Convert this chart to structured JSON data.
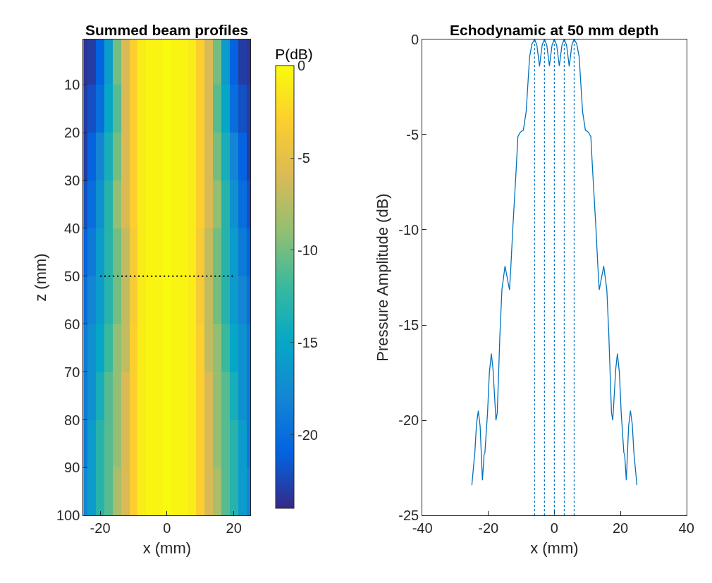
{
  "chart_data": [
    {
      "type": "heatmap",
      "title": "Summed beam profiles",
      "xlabel": "x (mm)",
      "ylabel": "z (mm)",
      "clabel": "P(dB)",
      "x": [
        -25,
        -22.5,
        -20,
        -17.5,
        -15,
        -12.5,
        -10,
        -7.5,
        -5,
        -2.5,
        0,
        2.5,
        5,
        7.5,
        10,
        12.5,
        15,
        17.5,
        20,
        22.5,
        25
      ],
      "y": [
        5,
        15,
        25,
        35,
        45,
        55,
        65,
        75,
        85,
        95
      ],
      "cells": [
        [
          -23.5,
          -23,
          -21,
          -16,
          -10,
          -6,
          -3,
          -1,
          -0.5,
          -0.5,
          0,
          -0.5,
          -0.5,
          -1,
          -3,
          -6,
          -10,
          -16,
          -21,
          -23,
          -23.5
        ],
        [
          -23,
          -22,
          -20,
          -15,
          -11,
          -6,
          -3,
          -1,
          -0.5,
          -0.5,
          0,
          -0.5,
          -0.5,
          -1,
          -3,
          -6,
          -11,
          -15,
          -20,
          -22,
          -23
        ],
        [
          -23,
          -21,
          -18,
          -14,
          -10,
          -6,
          -3,
          -1,
          -0.5,
          -0.5,
          0,
          -0.5,
          -0.5,
          -1,
          -3,
          -6,
          -10,
          -14,
          -18,
          -21,
          -23
        ],
        [
          -22,
          -20,
          -17,
          -13,
          -9,
          -6,
          -3,
          -1,
          -0.5,
          -0.5,
          0,
          -0.5,
          -0.5,
          -1,
          -3,
          -6,
          -9,
          -13,
          -17,
          -20,
          -22
        ],
        [
          -21,
          -19,
          -16,
          -13,
          -10,
          -7,
          -3.5,
          -1,
          -0.5,
          -0.5,
          0,
          -0.5,
          -0.5,
          -1,
          -3.5,
          -7,
          -10,
          -13,
          -16,
          -19,
          -21
        ],
        [
          -20,
          -18,
          -16,
          -13,
          -10,
          -7,
          -3.5,
          -1,
          -0.5,
          -0.5,
          0,
          -0.5,
          -0.5,
          -1,
          -3.5,
          -7,
          -10,
          -13,
          -16,
          -18,
          -20
        ],
        [
          -19,
          -17,
          -15,
          -12,
          -9,
          -7,
          -3,
          -1,
          -0.5,
          -0.5,
          0,
          -0.5,
          -0.5,
          -1,
          -3,
          -7,
          -9,
          -12,
          -15,
          -17,
          -19
        ],
        [
          -19,
          -17,
          -14,
          -11,
          -9,
          -6,
          -3,
          -1,
          -0.5,
          -0.5,
          0,
          -0.5,
          -0.5,
          -1,
          -3,
          -6,
          -9,
          -11,
          -14,
          -17,
          -19
        ],
        [
          -19,
          -16,
          -13,
          -11,
          -9,
          -6,
          -3,
          -1,
          -0.5,
          -0.5,
          0,
          -0.5,
          -0.5,
          -1,
          -3,
          -6,
          -9,
          -11,
          -13,
          -16,
          -19
        ],
        [
          -18,
          -16,
          -13,
          -11,
          -8,
          -6,
          -3,
          -1,
          -0.5,
          -0.5,
          0,
          -0.5,
          -0.5,
          -1,
          -3,
          -6,
          -8,
          -11,
          -13,
          -16,
          -18
        ]
      ],
      "clim": [
        -24,
        0
      ],
      "cticks": [
        -20,
        -15,
        -10,
        -5,
        0
      ],
      "xlim": [
        -25,
        25
      ],
      "xticks": [
        -20,
        0,
        20
      ],
      "ylim": [
        100,
        0.5
      ],
      "yticks": [
        10,
        20,
        30,
        40,
        50,
        60,
        70,
        80,
        90,
        100
      ],
      "series": [
        {
          "type": "line",
          "color": "#000000",
          "line_style": "dotted",
          "x": [
            -20,
            20
          ],
          "values": [
            50,
            50
          ]
        }
      ]
    },
    {
      "type": "line",
      "title": "Echodynamic at 50 mm depth",
      "xlabel": "x (mm)",
      "ylabel": "Pressure Amplitude (dB)",
      "xlim": [
        -40,
        40
      ],
      "xticks": [
        -40,
        -20,
        0,
        20,
        40
      ],
      "ylim": [
        -25,
        0
      ],
      "yticks": [
        -25,
        -20,
        -15,
        -10,
        -5,
        0
      ],
      "series": [
        {
          "color": "#0072bd",
          "x": [
            -25,
            -24.8,
            -24.1,
            -23.6,
            -23.05,
            -22.5,
            -21.8,
            -21.3,
            -21.05,
            -20.25,
            -19.7,
            -19.1,
            -18.6,
            -17.7,
            -17.3,
            -16.5,
            -15.9,
            -14.95,
            -14.2,
            -13.6,
            -13.2,
            -12.6,
            -11.5,
            -11.05,
            -10.3,
            -9.4,
            -8.55,
            -7.5,
            -6.8,
            -6,
            -5.3,
            -4.5,
            -3.7,
            -3,
            -2.3,
            -1.5,
            -0.7,
            0,
            0.7,
            1.5,
            2.3,
            3,
            3.7,
            4.5,
            5.3,
            6,
            6.8,
            7.5,
            8.55,
            9.4,
            10.3,
            11.05,
            11.5,
            12.6,
            13.2,
            13.6,
            14.2,
            14.95,
            15.9,
            16.5,
            17.3,
            17.7,
            18.6,
            19.1,
            19.7,
            20.25,
            21.05,
            21.3,
            21.8,
            22.5,
            23.05,
            23.6,
            24.1,
            24.8,
            25
          ],
          "values": [
            -23.4,
            -23.0,
            -21.7,
            -20.2,
            -19.5,
            -20.3,
            -23.15,
            -21.8,
            -21.7,
            -19.6,
            -17.5,
            -16.5,
            -17.3,
            -20.0,
            -19.6,
            -15.5,
            -13.15,
            -11.9,
            -12.6,
            -13.15,
            -12,
            -9.94,
            -6.6,
            -5.1,
            -4.87,
            -4.77,
            -3.8,
            -0.91,
            -0.25,
            0,
            -0.3,
            -1.42,
            -0.3,
            0,
            -0.3,
            -1.4,
            -0.3,
            0,
            -0.3,
            -1.4,
            -0.3,
            0,
            -0.3,
            -1.42,
            -0.3,
            0,
            -0.25,
            -0.91,
            -3.8,
            -4.77,
            -4.87,
            -5.1,
            -6.6,
            -9.94,
            -12,
            -13.15,
            -12.6,
            -11.9,
            -13.15,
            -15.5,
            -19.6,
            -20.0,
            -17.3,
            -16.5,
            -17.5,
            -19.6,
            -21.7,
            -21.8,
            -23.15,
            -20.3,
            -19.5,
            -20.2,
            -21.7,
            -23.0,
            -23.4
          ]
        }
      ],
      "ref_lines": [
        {
          "axis": "x",
          "value": -6,
          "color": "#0072bd",
          "line_style": "dotted"
        },
        {
          "axis": "x",
          "value": -3,
          "color": "#0072bd",
          "line_style": "dotted"
        },
        {
          "axis": "x",
          "value": 0,
          "color": "#0072bd",
          "line_style": "dotted"
        },
        {
          "axis": "x",
          "value": 3,
          "color": "#0072bd",
          "line_style": "dotted"
        },
        {
          "axis": "x",
          "value": 6,
          "color": "#0072bd",
          "line_style": "dotted"
        }
      ]
    }
  ]
}
